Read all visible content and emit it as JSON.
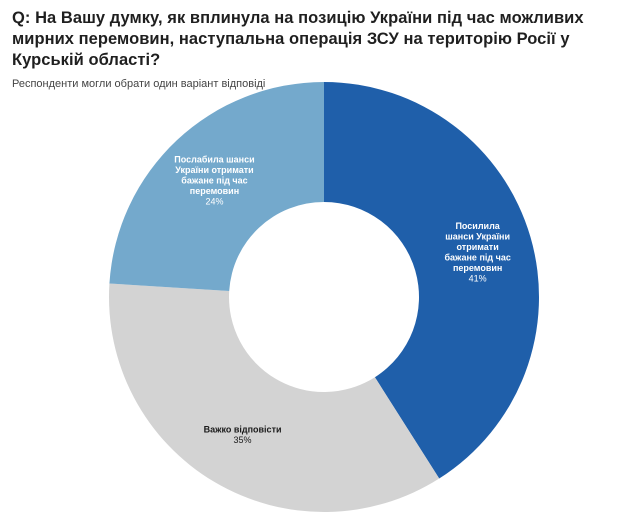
{
  "header": {
    "title": "Q: На Вашу думку, як вплинула на позицію України під час можливих мирних перемовин, наступальна операція ЗСУ на територію Росії у Курській області?",
    "subtitle": "Респонденти могли обрати один варіант відповіді"
  },
  "chart_data": {
    "type": "pie",
    "donut": true,
    "title": "Q: На Вашу думку, як вплинула на позицію України під час можливих мирних перемовин, наступальна операція ЗСУ на територію Росії у Курській області?",
    "subtitle": "Респонденти могли обрати один варіант відповіді",
    "slices": [
      {
        "label_lines": [
          "Посилила",
          "шанси України",
          "отримати",
          "бажане під час",
          "перемовин"
        ],
        "value": 41,
        "value_label": "41%",
        "color": "#1f5faa",
        "label_color": "#ffffff"
      },
      {
        "label_lines": [
          "Важко відповісти"
        ],
        "value": 35,
        "value_label": "35%",
        "color": "#d3d3d3",
        "label_color": "#1a1a1a"
      },
      {
        "label_lines": [
          "Послабила шанси",
          "України отримати",
          "бажане під час",
          "перемовин"
        ],
        "value": 24,
        "value_label": "24%",
        "color": "#74a9cc",
        "label_color": "#ffffff"
      }
    ],
    "legend": "none"
  }
}
